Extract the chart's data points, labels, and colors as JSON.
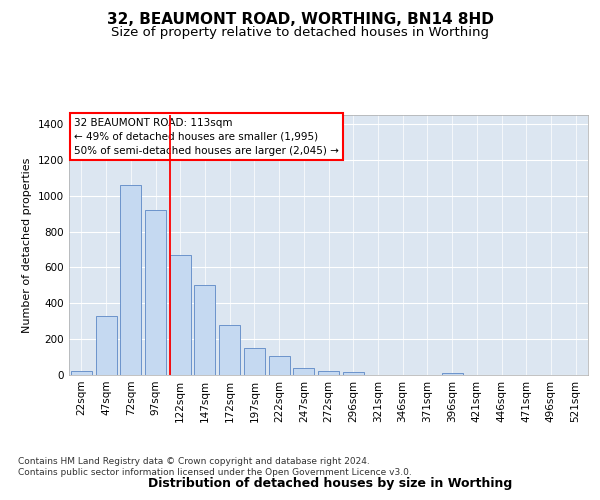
{
  "title": "32, BEAUMONT ROAD, WORTHING, BN14 8HD",
  "subtitle": "Size of property relative to detached houses in Worthing",
  "xlabel": "Distribution of detached houses by size in Worthing",
  "ylabel": "Number of detached properties",
  "categories": [
    "22sqm",
    "47sqm",
    "72sqm",
    "97sqm",
    "122sqm",
    "147sqm",
    "172sqm",
    "197sqm",
    "222sqm",
    "247sqm",
    "272sqm",
    "296sqm",
    "321sqm",
    "346sqm",
    "371sqm",
    "396sqm",
    "421sqm",
    "446sqm",
    "471sqm",
    "496sqm",
    "521sqm"
  ],
  "values": [
    20,
    330,
    1060,
    920,
    670,
    500,
    280,
    150,
    105,
    40,
    20,
    15,
    0,
    0,
    0,
    10,
    0,
    0,
    0,
    0,
    0
  ],
  "bar_color": "#c5d9f1",
  "bar_edge_color": "#5b87c5",
  "background_color": "#ffffff",
  "plot_bg_color": "#dce6f1",
  "grid_color": "#ffffff",
  "annotation_line1": "32 BEAUMONT ROAD: 113sqm",
  "annotation_line2": "← 49% of detached houses are smaller (1,995)",
  "annotation_line3": "50% of semi-detached houses are larger (2,045) →",
  "red_line_x": 4.0,
  "ylim": [
    0,
    1450
  ],
  "yticks": [
    0,
    200,
    400,
    600,
    800,
    1000,
    1200,
    1400
  ],
  "footer_text": "Contains HM Land Registry data © Crown copyright and database right 2024.\nContains public sector information licensed under the Open Government Licence v3.0.",
  "title_fontsize": 11,
  "subtitle_fontsize": 9.5,
  "xlabel_fontsize": 9,
  "ylabel_fontsize": 8,
  "tick_fontsize": 7.5,
  "annotation_fontsize": 7.5,
  "footer_fontsize": 6.5
}
